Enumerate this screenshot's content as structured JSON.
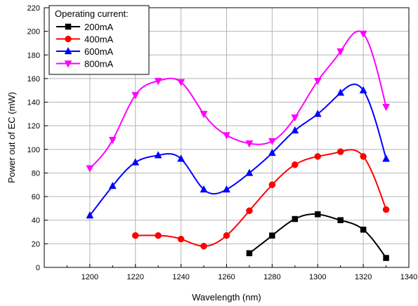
{
  "chart_data": {
    "type": "line",
    "title": "",
    "xlabel": "Wavelength (nm)",
    "ylabel": "Power out of EC (mW)",
    "xlim": [
      1180,
      1340
    ],
    "ylim": [
      0,
      220
    ],
    "xticks": [
      1200,
      1220,
      1240,
      1260,
      1280,
      1300,
      1320,
      1340
    ],
    "yticks": [
      0,
      20,
      40,
      60,
      80,
      100,
      120,
      140,
      160,
      180,
      200,
      220
    ],
    "grid": true,
    "legend_title": "Operating current:",
    "legend_position": "top-left",
    "series": [
      {
        "name": "200mA",
        "color": "#000000",
        "marker": "square",
        "x": [
          1270,
          1280,
          1290,
          1300,
          1310,
          1320,
          1330
        ],
        "y": [
          12,
          27,
          41,
          45,
          40,
          32,
          8
        ]
      },
      {
        "name": "400mA",
        "color": "#ff0000",
        "marker": "circle",
        "x": [
          1220,
          1230,
          1240,
          1250,
          1260,
          1270,
          1280,
          1290,
          1300,
          1310,
          1320,
          1330
        ],
        "y": [
          27,
          27,
          24,
          18,
          27,
          48,
          70,
          87,
          94,
          98,
          94,
          49
        ]
      },
      {
        "name": "600mA",
        "color": "#0000ff",
        "marker": "triangle-up",
        "x": [
          1200,
          1210,
          1220,
          1230,
          1240,
          1250,
          1260,
          1270,
          1280,
          1290,
          1300,
          1310,
          1320,
          1330
        ],
        "y": [
          44,
          69,
          89,
          95,
          92,
          66,
          66,
          80,
          97,
          116,
          130,
          148,
          150,
          92
        ]
      },
      {
        "name": "800mA",
        "color": "#ff00ff",
        "marker": "triangle-down",
        "x": [
          1200,
          1210,
          1220,
          1230,
          1240,
          1250,
          1260,
          1270,
          1280,
          1290,
          1300,
          1310,
          1320,
          1330
        ],
        "y": [
          84,
          108,
          146,
          158,
          157,
          130,
          112,
          105,
          107,
          127,
          158,
          183,
          198,
          136
        ]
      }
    ]
  }
}
